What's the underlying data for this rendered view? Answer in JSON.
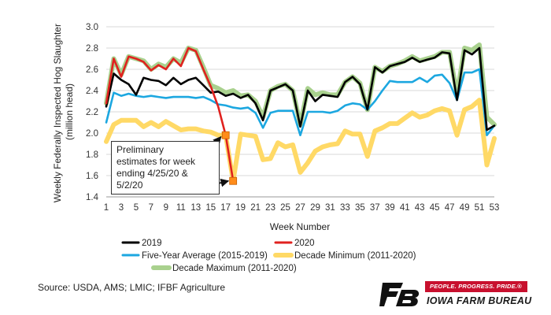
{
  "chart_data": {
    "type": "line",
    "title": "",
    "xlabel": "Week Number",
    "ylabel": "Weekly Federally Inspected Hog Slaughter (million head)",
    "xlim": [
      1,
      53
    ],
    "ylim": [
      1.4,
      3.0
    ],
    "x_ticks": [
      1,
      3,
      5,
      7,
      9,
      11,
      13,
      15,
      17,
      19,
      21,
      23,
      25,
      27,
      29,
      31,
      33,
      35,
      37,
      39,
      41,
      43,
      45,
      47,
      49,
      51,
      53
    ],
    "y_ticks": [
      1.4,
      1.6,
      1.8,
      2.0,
      2.2,
      2.4,
      2.6,
      2.8,
      3.0
    ],
    "y_tick_labels": [
      "1.4",
      "1.6",
      "1.8",
      "2.0",
      "2.2",
      "2.4",
      "2.6",
      "2.8",
      "3.0"
    ],
    "gridlines": "horizontal",
    "legend_position": "bottom",
    "series": [
      {
        "name": "Decade Maximum (2011-2020)",
        "color": "#a9d18e",
        "style": "thick",
        "values": [
          2.28,
          2.7,
          2.55,
          2.72,
          2.7,
          2.68,
          2.6,
          2.65,
          2.62,
          2.7,
          2.66,
          2.8,
          2.78,
          2.62,
          2.45,
          2.42,
          2.38,
          2.4,
          2.35,
          2.36,
          2.3,
          2.15,
          2.4,
          2.44,
          2.46,
          2.4,
          2.08,
          2.42,
          2.36,
          2.38,
          2.36,
          2.36,
          2.48,
          2.53,
          2.47,
          2.22,
          2.62,
          2.58,
          2.63,
          2.65,
          2.68,
          2.72,
          2.68,
          2.7,
          2.72,
          2.76,
          2.76,
          2.36,
          2.8,
          2.78,
          2.83,
          2.15,
          2.08
        ]
      },
      {
        "name": "Decade Minimum (2011-2020)",
        "color": "#ffd966",
        "style": "thick",
        "values": [
          1.92,
          2.08,
          2.12,
          2.12,
          2.12,
          2.06,
          2.1,
          2.06,
          2.11,
          2.07,
          2.03,
          2.04,
          2.04,
          2.02,
          2.01,
          1.98,
          1.98,
          1.55,
          1.99,
          1.98,
          1.97,
          1.75,
          1.76,
          1.91,
          1.87,
          1.89,
          1.63,
          1.72,
          1.83,
          1.87,
          1.89,
          1.9,
          2.02,
          1.99,
          1.99,
          1.78,
          2.02,
          2.05,
          2.09,
          2.09,
          2.14,
          2.19,
          2.15,
          2.17,
          2.21,
          2.23,
          2.21,
          1.98,
          2.22,
          2.25,
          2.31,
          1.7,
          1.95
        ]
      },
      {
        "name": "Five-Year Average (2015-2019)",
        "color": "#1ca7e0",
        "style": "normal",
        "values": [
          2.1,
          2.38,
          2.35,
          2.37,
          2.35,
          2.34,
          2.35,
          2.34,
          2.33,
          2.34,
          2.34,
          2.34,
          2.33,
          2.34,
          2.31,
          2.27,
          2.26,
          2.24,
          2.23,
          2.24,
          2.19,
          2.05,
          2.19,
          2.21,
          2.21,
          2.21,
          1.98,
          2.2,
          2.2,
          2.2,
          2.19,
          2.21,
          2.26,
          2.28,
          2.27,
          2.22,
          2.3,
          2.4,
          2.49,
          2.48,
          2.48,
          2.48,
          2.52,
          2.48,
          2.54,
          2.55,
          2.47,
          2.31,
          2.57,
          2.57,
          2.6,
          1.98,
          2.07
        ]
      },
      {
        "name": "2019",
        "color": "#000000",
        "style": "normal",
        "values": [
          2.25,
          2.56,
          2.5,
          2.46,
          2.36,
          2.52,
          2.5,
          2.49,
          2.45,
          2.52,
          2.46,
          2.5,
          2.52,
          2.45,
          2.38,
          2.39,
          2.35,
          2.37,
          2.33,
          2.36,
          2.28,
          2.12,
          2.4,
          2.43,
          2.46,
          2.4,
          2.06,
          2.4,
          2.3,
          2.36,
          2.35,
          2.34,
          2.48,
          2.53,
          2.46,
          2.22,
          2.62,
          2.57,
          2.63,
          2.65,
          2.67,
          2.71,
          2.67,
          2.69,
          2.71,
          2.76,
          2.75,
          2.31,
          2.78,
          2.74,
          2.8,
          2.03,
          2.07
        ]
      },
      {
        "name": "2020",
        "color": "#e0221f",
        "style": "normal",
        "values": [
          2.28,
          2.7,
          2.53,
          2.72,
          2.7,
          2.67,
          2.59,
          2.64,
          2.6,
          2.7,
          2.63,
          2.8,
          2.77,
          2.6,
          2.44,
          2.25,
          1.98,
          1.55,
          null,
          null,
          null,
          null,
          null,
          null,
          null,
          null,
          null,
          null,
          null,
          null,
          null,
          null,
          null,
          null,
          null,
          null,
          null,
          null,
          null,
          null,
          null,
          null,
          null,
          null,
          null,
          null,
          null,
          null,
          null,
          null,
          null,
          null,
          null
        ]
      }
    ],
    "preliminary_points": [
      {
        "week": 17,
        "value": 1.98
      },
      {
        "week": 18,
        "value": 1.55
      }
    ],
    "preliminary_color": "#ff8c1a",
    "annotation": "Preliminary\nestimates for week\nending 4/25/20 &\n5/2/20",
    "legend_order": [
      "2019",
      "2020",
      "Five-Year Average (2015-2019)",
      "Decade Minimum (2011-2020)",
      "Decade Maximum (2011-2020)"
    ]
  },
  "source_text": "Source: USDA, AMS; LMIC; IFBF Agriculture",
  "logo": {
    "tagline": "PEOPLE. PROGRESS. PRIDE.®",
    "name": "IOWA FARM BUREAU"
  }
}
